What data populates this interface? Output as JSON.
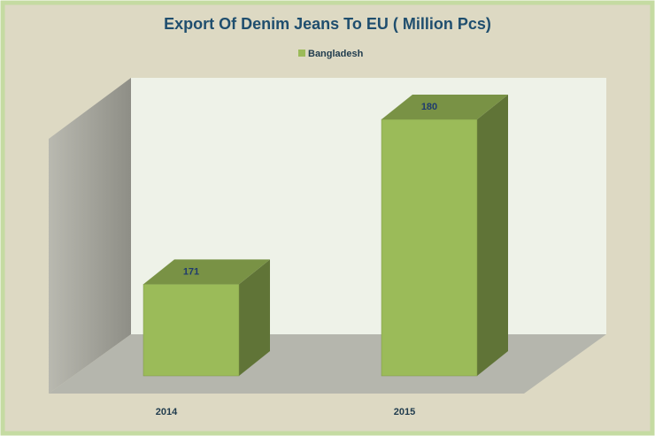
{
  "chart_data": {
    "type": "bar3d",
    "title": "Export Of Denim Jeans To EU ( Million Pcs)",
    "categories": [
      "2014",
      "2015"
    ],
    "series": [
      {
        "name": "Bangladesh",
        "color": "#9bbb59",
        "values": [
          171,
          180
        ]
      }
    ],
    "ylim": [
      166,
      180
    ],
    "legend": "top"
  }
}
